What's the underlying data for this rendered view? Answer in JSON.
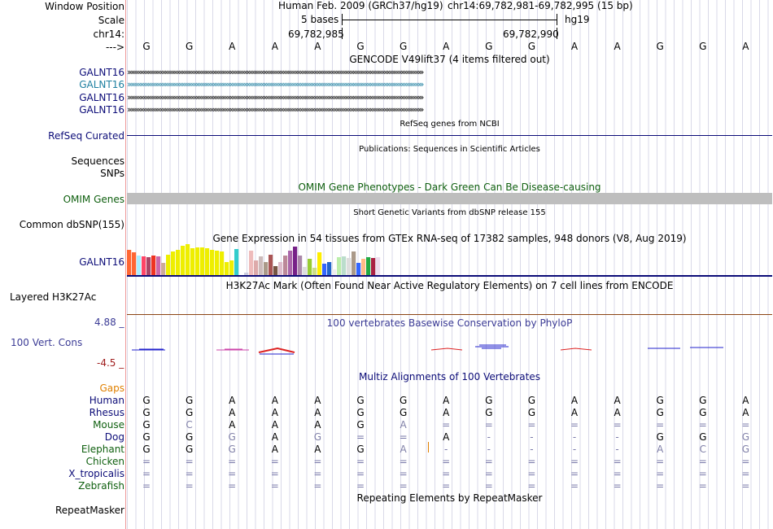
{
  "header": {
    "window_position_label": "Window Position",
    "scale_label": "Scale",
    "chr_label": "chr14:",
    "arrow_label": "--->",
    "assembly": "Human Feb. 2009 (GRCh37/hg19)",
    "coords": "chr14:69,782,981-69,782,995 (15 bp)",
    "scale_text": "5 bases",
    "db": "hg19",
    "pos1": "69,782,985",
    "pos2": "69,782,990",
    "bases": [
      "G",
      "G",
      "A",
      "A",
      "A",
      "G",
      "G",
      "A",
      "G",
      "G",
      "A",
      "A",
      "G",
      "G",
      "A"
    ]
  },
  "gencode": {
    "title": "GENCODE V49lift37 (4 items filtered out)",
    "items": [
      {
        "label": "GALNT16",
        "color": "#0c0c78"
      },
      {
        "label": "GALNT16",
        "color": "#1e7fa0"
      },
      {
        "label": "GALNT16",
        "color": "#0c0c78"
      },
      {
        "label": "GALNT16",
        "color": "#0c0c78"
      }
    ]
  },
  "refseq": {
    "title": "RefSeq genes from NCBI",
    "label": "RefSeq Curated"
  },
  "publications": {
    "title": "Publications: Sequences in Scientific Articles",
    "label1": "Sequences",
    "label2": "SNPs"
  },
  "omim": {
    "title": "OMIM Gene Phenotypes - Dark Green Can Be Disease-causing",
    "label": "OMIM Genes"
  },
  "dbsnp": {
    "title": "Short Genetic Variants from dbSNP release 155",
    "label": "Common dbSNP(155)"
  },
  "gtex": {
    "title": "Gene Expression in 54 tissues from GTEx RNA-seq of 17382 samples, 948 donors (V8, Aug 2019)",
    "label": "GALNT16",
    "bars": [
      {
        "v": 31,
        "c": "#ff6633"
      },
      {
        "v": 28,
        "c": "#ff6633"
      },
      {
        "v": 24,
        "c": "#aaeeff"
      },
      {
        "v": 23,
        "c": "#ff4466"
      },
      {
        "v": 22,
        "c": "#aa4466"
      },
      {
        "v": 24,
        "c": "#ee3322"
      },
      {
        "v": 23,
        "c": "#cc66aa"
      },
      {
        "v": 15,
        "c": "#ccaa99"
      },
      {
        "v": 25,
        "c": "#eeee00"
      },
      {
        "v": 29,
        "c": "#eeee00"
      },
      {
        "v": 31,
        "c": "#eeee00"
      },
      {
        "v": 36,
        "c": "#eeee00"
      },
      {
        "v": 38,
        "c": "#eeee00"
      },
      {
        "v": 33,
        "c": "#eeee00"
      },
      {
        "v": 34,
        "c": "#eeee00"
      },
      {
        "v": 34,
        "c": "#eeee00"
      },
      {
        "v": 33,
        "c": "#eeee00"
      },
      {
        "v": 31,
        "c": "#eeee00"
      },
      {
        "v": 30,
        "c": "#eeee00"
      },
      {
        "v": 29,
        "c": "#eeee00"
      },
      {
        "v": 16,
        "c": "#eeee00"
      },
      {
        "v": 18,
        "c": "#eeee00"
      },
      {
        "v": 32,
        "c": "#33cccc"
      },
      {
        "v": 2,
        "c": "#ffffff"
      },
      {
        "v": 3,
        "c": "#ccccdd"
      },
      {
        "v": 30,
        "c": "#eebbbb"
      },
      {
        "v": 18,
        "c": "#ddaaaa"
      },
      {
        "v": 23,
        "c": "#ccbbbb"
      },
      {
        "v": 16,
        "c": "#aa9988"
      },
      {
        "v": 25,
        "c": "#aa5555"
      },
      {
        "v": 11,
        "c": "#775544"
      },
      {
        "v": 16,
        "c": "#ddbbcc"
      },
      {
        "v": 24,
        "c": "#bb8899"
      },
      {
        "v": 30,
        "c": "#aa66aa"
      },
      {
        "v": 35,
        "c": "#772288"
      },
      {
        "v": 24,
        "c": "#aa88aa"
      },
      {
        "v": 10,
        "c": "#dddddd"
      },
      {
        "v": 20,
        "c": "#99cc33"
      },
      {
        "v": 9,
        "c": "#ccdd88"
      },
      {
        "v": 28,
        "c": "#ffee00"
      },
      {
        "v": 14,
        "c": "#3366ff"
      },
      {
        "v": 16,
        "c": "#2266cc"
      },
      {
        "v": 7,
        "c": "#eeeeee"
      },
      {
        "v": 22,
        "c": "#bbeeaa"
      },
      {
        "v": 23,
        "c": "#bbddcc"
      },
      {
        "v": 21,
        "c": "#dddddd"
      },
      {
        "v": 29,
        "c": "#aa9988"
      },
      {
        "v": 15,
        "c": "#3366ff"
      },
      {
        "v": 20,
        "c": "#ffbb88"
      },
      {
        "v": 22,
        "c": "#22aa44"
      },
      {
        "v": 21,
        "c": "#aa2244"
      },
      {
        "v": 22,
        "c": "#eeddee"
      }
    ]
  },
  "h3k27ac": {
    "title": "H3K27Ac Mark (Often Found Near Active Regulatory Elements) on 7 cell lines from ENCODE",
    "label": "Layered H3K27Ac"
  },
  "phylop": {
    "title": "100 vertebrates Basewise Conservation by PhyloP",
    "label": "100 Vert. Cons",
    "max": "4.88 _",
    "min": "-4.5 _"
  },
  "multiz": {
    "title": "Multiz Alignments of 100 Vertebrates",
    "gaps_label": "Gaps",
    "species": [
      {
        "name": "Human",
        "color": "#0c0c78",
        "bases": [
          "G",
          "G",
          "A",
          "A",
          "A",
          "G",
          "G",
          "A",
          "G",
          "G",
          "A",
          "A",
          "G",
          "G",
          "A"
        ]
      },
      {
        "name": "Rhesus",
        "color": "#0c0c78",
        "bases": [
          "G",
          "G",
          "A",
          "A",
          "A",
          "G",
          "G",
          "A",
          "G",
          "G",
          "A",
          "A",
          "G",
          "G",
          "A"
        ]
      },
      {
        "name": "Mouse",
        "color": "#106010",
        "bases": [
          "G",
          "C",
          "A",
          "A",
          "A",
          "G",
          "A",
          "=",
          "=",
          "=",
          "=",
          "=",
          "=",
          "=",
          "="
        ]
      },
      {
        "name": "Dog",
        "color": "#0c0c78",
        "bases": [
          "G",
          "G",
          "G",
          "A",
          "G",
          "=",
          "=",
          "A",
          "-",
          "-",
          "-",
          "-",
          "G",
          "G",
          "G"
        ]
      },
      {
        "name": "Elephant",
        "color": "#106010",
        "bases": [
          "G",
          "G",
          "G",
          "A",
          "A",
          "G",
          "A",
          "-",
          "-",
          "-",
          "-",
          "-",
          "A",
          "C",
          "G"
        ]
      },
      {
        "name": "Chicken",
        "color": "#106010",
        "bases": [
          "=",
          "=",
          "=",
          "=",
          "=",
          "=",
          "=",
          "=",
          "=",
          "=",
          "=",
          "=",
          "=",
          "=",
          "="
        ]
      },
      {
        "name": "X_tropicalis",
        "color": "#0c0c78",
        "bases": [
          "=",
          "=",
          "=",
          "=",
          "=",
          "=",
          "=",
          "=",
          "=",
          "=",
          "=",
          "=",
          "=",
          "=",
          "="
        ]
      },
      {
        "name": "Zebrafish",
        "color": "#106010",
        "bases": [
          "=",
          "=",
          "=",
          "=",
          "=",
          "=",
          "=",
          "=",
          "=",
          "=",
          "=",
          "=",
          "=",
          "=",
          "="
        ]
      }
    ]
  },
  "repeatmasker": {
    "title": "Repeating Elements by RepeatMasker",
    "label": "RepeatMasker"
  }
}
